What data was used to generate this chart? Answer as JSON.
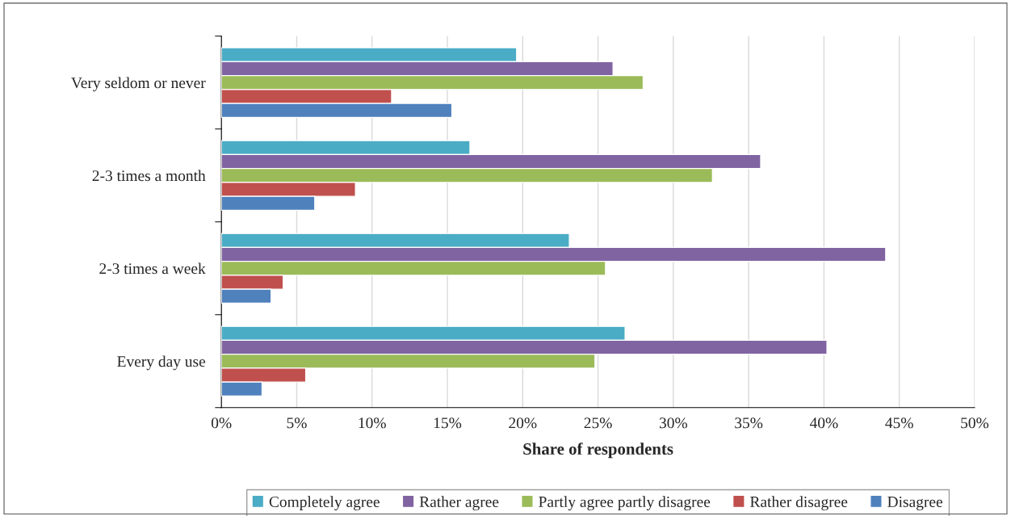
{
  "chart_data": {
    "type": "bar",
    "orientation": "horizontal",
    "xlabel": "Share of respondents",
    "categories": [
      "Very seldom or never",
      "2-3 times a month",
      "2-3 times a week",
      "Every day use"
    ],
    "series": [
      {
        "name": "Completely agree",
        "color": "#4bacc6",
        "values": [
          19.6,
          16.5,
          23.1,
          26.8
        ]
      },
      {
        "name": "Rather agree",
        "color": "#8064a2",
        "values": [
          26.0,
          35.8,
          44.1,
          40.2
        ]
      },
      {
        "name": "Partly agree partly disagree",
        "color": "#9bbb59",
        "values": [
          28.0,
          32.6,
          25.5,
          24.8
        ]
      },
      {
        "name": "Rather disagree",
        "color": "#c0504d",
        "values": [
          11.3,
          8.9,
          4.1,
          5.6
        ]
      },
      {
        "name": "Disagree",
        "color": "#4f81bd",
        "values": [
          15.3,
          6.2,
          3.3,
          2.7
        ]
      }
    ],
    "xlim": [
      0,
      50
    ],
    "xticks": [
      {
        "value": 0,
        "label": "0%"
      },
      {
        "value": 5,
        "label": "5%"
      },
      {
        "value": 10,
        "label": "10%"
      },
      {
        "value": 15,
        "label": "15%"
      },
      {
        "value": 20,
        "label": "20%"
      },
      {
        "value": 25,
        "label": "25%"
      },
      {
        "value": 30,
        "label": "30%"
      },
      {
        "value": 35,
        "label": "35%"
      },
      {
        "value": 40,
        "label": "40%"
      },
      {
        "value": 45,
        "label": "45%"
      },
      {
        "value": 50,
        "label": "50%"
      }
    ],
    "grid": "x",
    "legend": "bottom"
  }
}
